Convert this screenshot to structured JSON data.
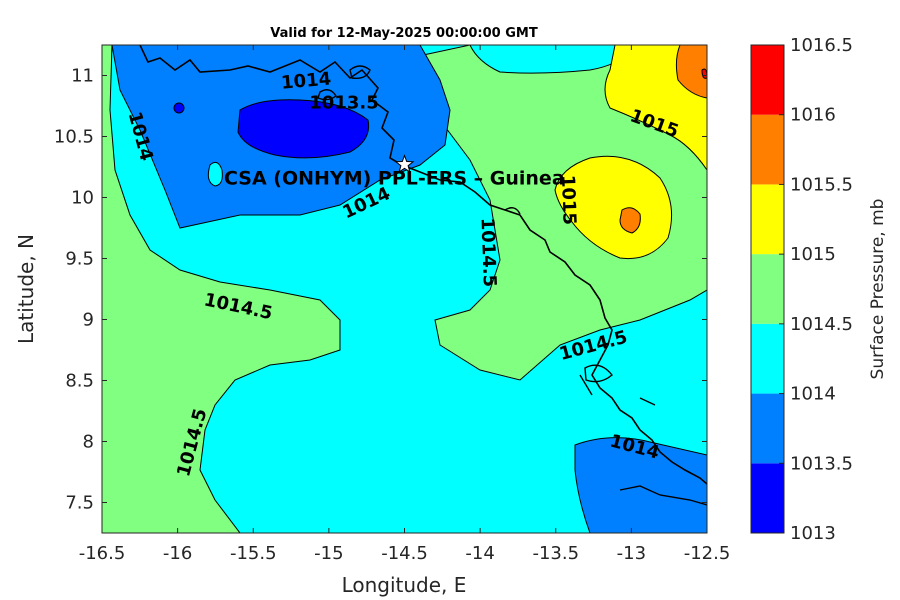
{
  "title": "Valid for 12-May-2025 00:00:00 GMT",
  "station_label": "CSA (ONHYM) PPL-ERS  – Guinea",
  "chart_data": {
    "type": "contour-map",
    "xlabel": "Longitude, E",
    "ylabel": "Latitude, N",
    "xlim": [
      -16.5,
      -12.5
    ],
    "ylim": [
      7.25,
      11.25
    ],
    "xticks": [
      -16.5,
      -16,
      -15.5,
      -15,
      -14.5,
      -14,
      -13.5,
      -13,
      -12.5
    ],
    "yticks": [
      7.5,
      8,
      8.5,
      9,
      9.5,
      10,
      10.5,
      11
    ],
    "xtick_labels": [
      "-16.5",
      "-16",
      "-15.5",
      "-15",
      "-14.5",
      "-14",
      "-13.5",
      "-13",
      "-12.5"
    ],
    "ytick_labels": [
      "7.5",
      "8",
      "8.5",
      "9",
      "9.5",
      "10",
      "10.5",
      "11"
    ],
    "station": {
      "lon": -14.5,
      "lat": 10.27
    },
    "colorbar": {
      "label": "Surface Pressure, mb",
      "levels": [
        1013,
        1013.5,
        1014,
        1014.5,
        1015,
        1015.5,
        1016,
        1016.5
      ],
      "level_labels": [
        "1013",
        "1013.5",
        "1014",
        "1014.5",
        "1015",
        "1015.5",
        "1016",
        "1016.5"
      ],
      "colors": [
        "#0000ff",
        "#0080ff",
        "#00ffff",
        "#80ff80",
        "#ffff00",
        "#ff8000",
        "#ff0000",
        "#800000"
      ]
    },
    "contour_labels": [
      {
        "text": "1014",
        "lon": -15.15,
        "lat": 10.95,
        "angle": -5
      },
      {
        "text": "1013.5",
        "lon": -14.9,
        "lat": 10.77,
        "angle": 0
      },
      {
        "text": "1014",
        "lon": -16.25,
        "lat": 10.5,
        "angle": 75
      },
      {
        "text": "1015",
        "lon": -12.85,
        "lat": 10.6,
        "angle": 20
      },
      {
        "text": "1014",
        "lon": -14.75,
        "lat": 9.95,
        "angle": -25
      },
      {
        "text": "1015",
        "lon": -13.42,
        "lat": 9.98,
        "angle": 88
      },
      {
        "text": "1014.5",
        "lon": -13.95,
        "lat": 9.55,
        "angle": 88
      },
      {
        "text": "1014.5",
        "lon": -15.6,
        "lat": 9.1,
        "angle": 12
      },
      {
        "text": "1014.5",
        "lon": -13.25,
        "lat": 8.78,
        "angle": -15
      },
      {
        "text": "1014.5",
        "lon": -15.9,
        "lat": 7.99,
        "angle": -75
      },
      {
        "text": "1014",
        "lon": -12.98,
        "lat": 7.95,
        "angle": 15
      }
    ]
  }
}
